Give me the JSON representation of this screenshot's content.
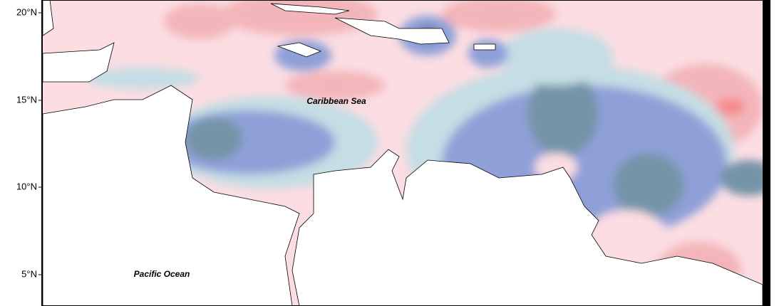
{
  "axis": {
    "lat_labels": [
      "20°N",
      "15°N",
      "10°N",
      "5°N"
    ]
  },
  "labels": {
    "caribbean": "Caribbean Sea",
    "pacific": "Pacific Ocean"
  }
}
